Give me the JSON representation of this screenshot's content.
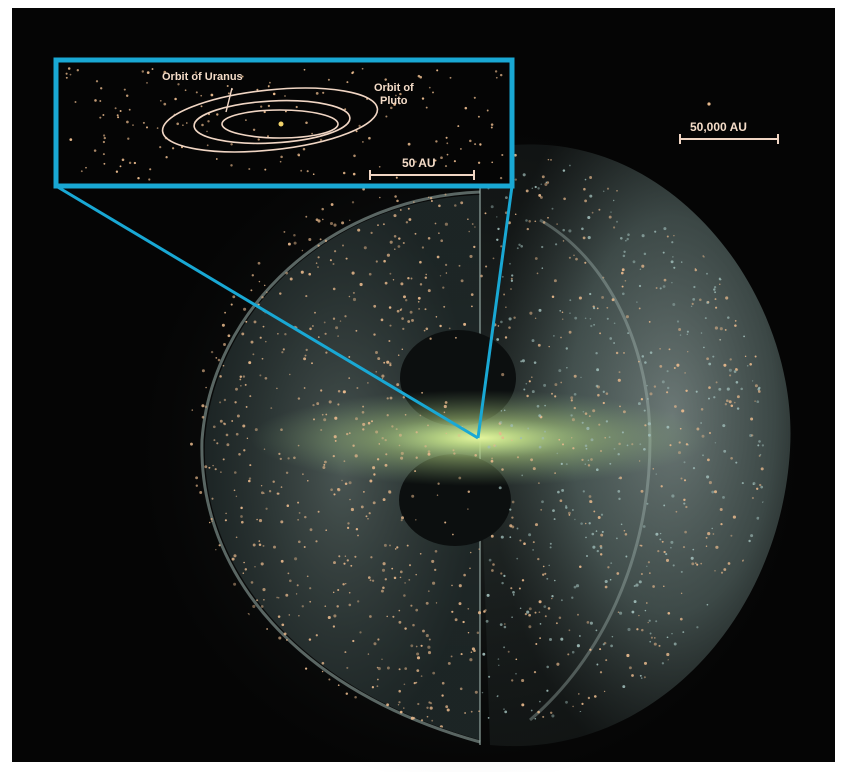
{
  "inset": {
    "orbit_uranus_label": "Orbit of Uranus",
    "orbit_pluto_label_line1": "Orbit of",
    "orbit_pluto_label_line2": "Pluto",
    "scale_label": "50 AU"
  },
  "main": {
    "scale_label": "50,000 AU"
  },
  "colors": {
    "inset_border": "#19a8d4",
    "label_text": "#f4dcc8",
    "orbit_lines": "#f1d6c4",
    "star_dots": "#e8b98c",
    "background": "#050505",
    "cloud_tint": "#9fbcb8",
    "disk_glow": "#c8e88a"
  }
}
